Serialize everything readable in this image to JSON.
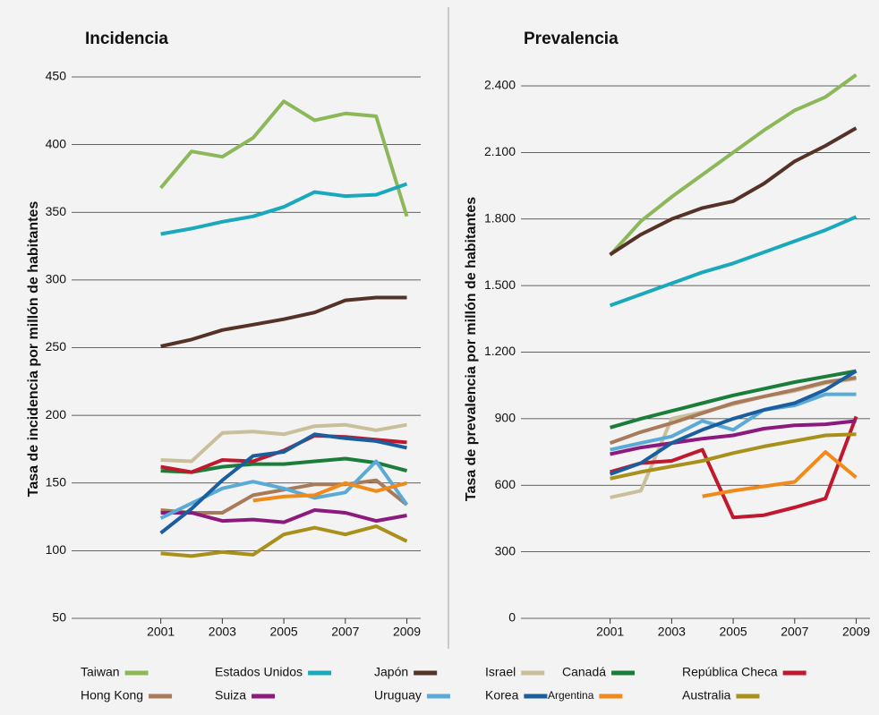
{
  "chart_data": [
    {
      "type": "line",
      "title": "Incidencia",
      "ylabel": "Tasa de incidencia por millón de habitantes",
      "x": [
        2001,
        2002,
        2003,
        2004,
        2005,
        2006,
        2007,
        2008,
        2009
      ],
      "xlim": [
        1998.1,
        2009.45
      ],
      "xticks": [
        2001,
        2003,
        2005,
        2007,
        2009
      ],
      "ylim": [
        50,
        450
      ],
      "yticks": [
        50,
        100,
        150,
        200,
        250,
        300,
        350,
        400,
        450
      ],
      "grid": true,
      "series": [
        {
          "name": "Taiwan",
          "color": "#8db85a",
          "values": [
            368,
            395,
            391,
            405,
            432,
            418,
            423,
            421,
            347
          ]
        },
        {
          "name": "Estados Unidos",
          "color": "#1aa8bc",
          "values": [
            334,
            338,
            343,
            347,
            354,
            365,
            362,
            363,
            371
          ]
        },
        {
          "name": "Japón",
          "color": "#553228",
          "values": [
            251,
            256,
            263,
            267,
            271,
            276,
            285,
            287,
            287
          ]
        },
        {
          "name": "Israel",
          "color": "#c9bf9a",
          "values": [
            167,
            166,
            187,
            188,
            186,
            192,
            193,
            189,
            193
          ]
        },
        {
          "name": "Canadá",
          "color": "#1a7d3a",
          "values": [
            159,
            158,
            162,
            164,
            164,
            166,
            168,
            165,
            159
          ]
        },
        {
          "name": "República Checa",
          "color": "#c0182c",
          "values": [
            162,
            158,
            167,
            166,
            174,
            185,
            184,
            182,
            180
          ]
        },
        {
          "name": "Hong Kong",
          "color": "#a87a5a",
          "values": [
            130,
            128,
            128,
            141,
            145,
            149,
            149,
            152,
            134
          ]
        },
        {
          "name": "Suiza",
          "color": "#8c1a7e",
          "values": [
            128,
            128,
            122,
            123,
            121,
            130,
            128,
            122,
            126
          ]
        },
        {
          "name": "Uruguay",
          "color": "#5aaad8",
          "values": [
            124,
            135,
            146,
            151,
            146,
            139,
            143,
            166,
            134
          ]
        },
        {
          "name": "Korea",
          "color": "#1a5e9e",
          "values": [
            113,
            131,
            152,
            170,
            173,
            186,
            183,
            181,
            176
          ]
        },
        {
          "name": "Argentina",
          "color": "#f08a1a",
          "values": [
            null,
            null,
            null,
            137,
            140,
            141,
            150,
            144,
            150
          ]
        },
        {
          "name": "Australia",
          "color": "#a8901a",
          "values": [
            98,
            96,
            99,
            97,
            112,
            117,
            112,
            118,
            107
          ]
        }
      ]
    },
    {
      "type": "line",
      "title": "Prevalencia",
      "ylabel": "Tasa de prevalencia por millón de habitantes",
      "x": [
        2001,
        2002,
        2003,
        2004,
        2005,
        2006,
        2007,
        2008,
        2009
      ],
      "xlim": [
        1998.1,
        2009.45
      ],
      "xticks": [
        2001,
        2003,
        2005,
        2007,
        2009
      ],
      "ylim": [
        0,
        2400
      ],
      "yticks": [
        0,
        300,
        600,
        900,
        {
          "value": 1200,
          "label": "1.200"
        },
        {
          "value": 1500,
          "label": "1.500"
        },
        {
          "value": 1800,
          "label": "1.800"
        },
        {
          "value": 2100,
          "label": "2.100"
        },
        {
          "value": 2400,
          "label": "2.400"
        }
      ],
      "grid": true,
      "series": [
        {
          "name": "Taiwan",
          "color": "#8db85a",
          "values": [
            1637,
            1790,
            1900,
            2000,
            2100,
            2200,
            2290,
            2350,
            2450
          ]
        },
        {
          "name": "Estados Unidos",
          "color": "#1aa8bc",
          "values": [
            1410,
            1460,
            1510,
            1560,
            1600,
            1650,
            1700,
            1750,
            1810
          ]
        },
        {
          "name": "Japón",
          "color": "#553228",
          "values": [
            1640,
            1730,
            1800,
            1850,
            1880,
            1960,
            2060,
            2130,
            2210
          ]
        },
        {
          "name": "Israel",
          "color": "#c9bf9a",
          "values": [
            545,
            575,
            900,
            930,
            965,
            1000,
            1025,
            1060,
            1080
          ]
        },
        {
          "name": "Canadá",
          "color": "#1a7d3a",
          "values": [
            860,
            900,
            935,
            970,
            1005,
            1035,
            1065,
            1090,
            1115
          ]
        },
        {
          "name": "República Checa",
          "color": "#c0182c",
          "values": [
            660,
            700,
            710,
            760,
            455,
            465,
            500,
            540,
            910
          ]
        },
        {
          "name": "Hong Kong",
          "color": "#a87a5a",
          "values": [
            790,
            840,
            880,
            925,
            970,
            1000,
            1030,
            1065,
            1085
          ]
        },
        {
          "name": "Suiza",
          "color": "#8c1a7e",
          "values": [
            740,
            770,
            790,
            810,
            825,
            855,
            870,
            875,
            890
          ]
        },
        {
          "name": "Uruguay",
          "color": "#5aaad8",
          "values": [
            760,
            790,
            820,
            890,
            850,
            940,
            960,
            1010,
            1010
          ]
        },
        {
          "name": "Korea",
          "color": "#1a5e9e",
          "values": [
            650,
            700,
            790,
            850,
            900,
            940,
            970,
            1030,
            1115
          ]
        },
        {
          "name": "Argentina",
          "color": "#f08a1a",
          "values": [
            null,
            null,
            null,
            550,
            575,
            595,
            615,
            750,
            635
          ]
        },
        {
          "name": "Australia",
          "color": "#a8901a",
          "values": [
            630,
            660,
            685,
            710,
            745,
            775,
            800,
            825,
            830
          ]
        }
      ]
    }
  ]
}
